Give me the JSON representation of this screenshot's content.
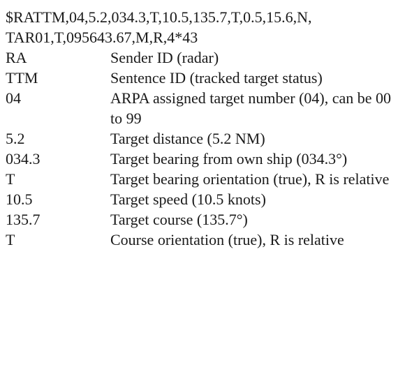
{
  "sentence": {
    "line1": "$RATTM,04,5.2,034.3,T,10.5,135.7,T,0.5,15.6,N,",
    "line2": "TAR01,T,095643.67,M,R,4*43"
  },
  "fields": [
    {
      "code": "RA",
      "description": "Sender ID (radar)"
    },
    {
      "code": "TTM",
      "description": "Sentence ID (tracked target status)"
    },
    {
      "code": "04",
      "description": "ARPA assigned target number (04), can be 00 to 99"
    },
    {
      "code": "5.2",
      "description": "Target distance (5.2 NM)"
    },
    {
      "code": "034.3",
      "description": "Target bearing from own ship (034.3°)"
    },
    {
      "code": "T",
      "description": "Target bearing orientation (true), R is relative"
    },
    {
      "code": "10.5",
      "description": "Target speed (10.5 knots)"
    },
    {
      "code": "135.7",
      "description": "Target course (135.7°)"
    },
    {
      "code": "T",
      "description": "Course orientation (true), R is relative"
    }
  ]
}
